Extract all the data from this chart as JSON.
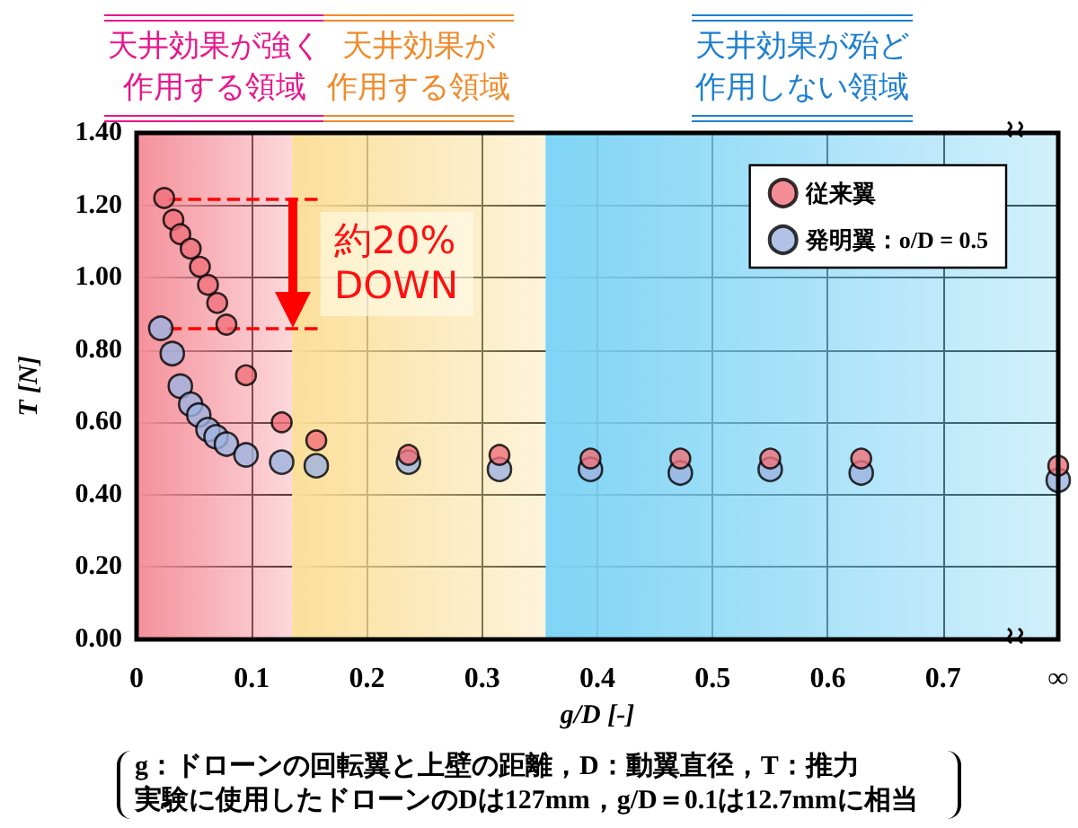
{
  "chart_data": {
    "type": "scatter",
    "xlabel": "g/D [-]",
    "ylabel": "T [N]",
    "xlim": [
      0,
      0.8
    ],
    "xticks": [
      0,
      0.1,
      0.2,
      0.3,
      0.4,
      0.5,
      0.6,
      0.7,
      {
        "value": 0.8,
        "label": "∞"
      }
    ],
    "ylim": [
      0,
      1.4
    ],
    "yticks": [
      {
        "value": 0,
        "label": "0.00"
      },
      {
        "value": 0.2,
        "label": "0.20"
      },
      {
        "value": 0.4,
        "label": "0.40"
      },
      {
        "value": 0.6,
        "label": "0.60"
      },
      {
        "value": 0.8,
        "label": "0.80"
      },
      {
        "value": 1.0,
        "label": "1.00"
      },
      {
        "value": 1.2,
        "label": "1.20"
      },
      {
        "value": 1.4,
        "label": "1.40"
      }
    ],
    "grid": true,
    "legend": "top right",
    "marker": "circle",
    "series": [
      {
        "name": "従来翼",
        "color": "#f0707a",
        "x": [
          0.024,
          0.032,
          0.038,
          0.047,
          0.055,
          0.062,
          0.07,
          0.078,
          0.095,
          0.126,
          0.156,
          0.236,
          0.315,
          0.394,
          0.472,
          0.55,
          0.629,
          0.8
        ],
        "values": [
          1.22,
          1.16,
          1.12,
          1.08,
          1.03,
          0.98,
          0.93,
          0.87,
          0.73,
          0.6,
          0.55,
          0.51,
          0.51,
          0.5,
          0.5,
          0.5,
          0.5,
          0.48
        ]
      },
      {
        "name": "発明翼：o/D = 0.5",
        "color": "#9db3e0",
        "x": [
          0.021,
          0.031,
          0.038,
          0.047,
          0.054,
          0.062,
          0.069,
          0.078,
          0.095,
          0.126,
          0.156,
          0.236,
          0.315,
          0.394,
          0.472,
          0.55,
          0.629,
          0.8
        ],
        "values": [
          0.86,
          0.79,
          0.7,
          0.65,
          0.62,
          0.58,
          0.56,
          0.54,
          0.51,
          0.49,
          0.48,
          0.49,
          0.47,
          0.47,
          0.46,
          0.47,
          0.46,
          0.44
        ]
      }
    ],
    "bands": [
      {
        "axis": "x",
        "from": 0,
        "to": 0.135,
        "label": "天井効果が強く作用する領域",
        "color": "#f5909a"
      },
      {
        "axis": "x",
        "from": 0.135,
        "to": 0.355,
        "label": "天井効果が作用する領域",
        "color": "#fbdf9a"
      },
      {
        "axis": "x",
        "from": 0.355,
        "to": 0.8,
        "label": "天井効果が殆ど作用しない領域",
        "color": "#7fd4f5"
      }
    ],
    "ref_lines": [
      {
        "axis": "y",
        "value": 1.22,
        "color": "#ff0000",
        "line_style": "dashed"
      },
      {
        "axis": "y",
        "value": 0.86,
        "color": "#ff0000",
        "line_style": "dashed"
      }
    ],
    "annotations": [
      {
        "text": "約20%\nDOWN",
        "x": 0.135,
        "y": 0.86
      },
      "g：ドローンの回転翼と上壁の距離，D：動翼直径，T：推力",
      "実験に使用したドローンのDは127mm，g/D＝0.1は12.7mmに相当"
    ]
  }
}
